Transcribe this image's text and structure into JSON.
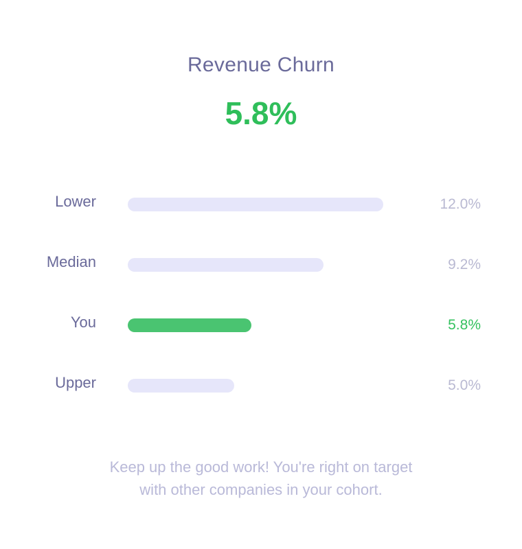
{
  "card": {
    "title": "Revenue Churn",
    "value": "5.8%",
    "footer_line1": "Keep up the good work! You're right on target",
    "footer_line2": "with other companies in your cohort."
  },
  "colors": {
    "title": "#6a6a9a",
    "value_green": "#2fbe5a",
    "bar_default": "#e6e6fa",
    "bar_highlight": "#4ac471",
    "muted_text": "#b9b9d2"
  },
  "chart_data": {
    "type": "bar",
    "orientation": "horizontal",
    "title": "Revenue Churn",
    "categories": [
      "Lower",
      "Median",
      "You",
      "Upper"
    ],
    "values": [
      12.0,
      9.2,
      5.8,
      5.0
    ],
    "value_labels": [
      "12.0%",
      "9.2%",
      "5.8%",
      "5.0%"
    ],
    "highlight": "You",
    "xlim": [
      0,
      12.0
    ],
    "grid": false,
    "legend": "none"
  }
}
